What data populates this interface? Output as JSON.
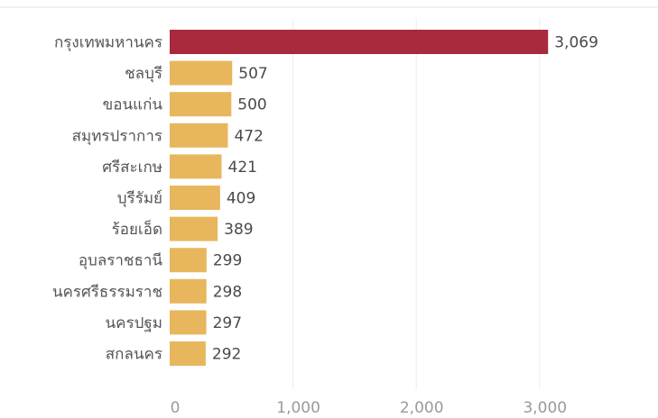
{
  "chart_data": {
    "type": "bar",
    "orientation": "horizontal",
    "categories": [
      "กรุงเทพมหานคร",
      "ชลบุรี",
      "ขอนแก่น",
      "สมุทรปราการ",
      "ศรีสะเกษ",
      "บุรีรัมย์",
      "ร้อยเอ็ด",
      "อุบลราชธานี",
      "นครศรีธรรมราช",
      "นครปฐม",
      "สกลนคร"
    ],
    "values": [
      3069,
      507,
      500,
      472,
      421,
      409,
      389,
      299,
      298,
      297,
      292
    ],
    "value_labels": [
      "3,069",
      "507",
      "500",
      "472",
      "421",
      "409",
      "389",
      "299",
      "298",
      "297",
      "292"
    ],
    "x_ticks": [
      0,
      1000,
      2000,
      3000
    ],
    "x_tick_labels": [
      "0",
      "1,000",
      "2,000",
      "3,000"
    ],
    "xlim": [
      0,
      3400
    ],
    "grid": "vertical",
    "legend": "none",
    "colors": {
      "highlight": "#a82a3c",
      "bar": "#e8b65d"
    },
    "highlight_index": 0
  }
}
